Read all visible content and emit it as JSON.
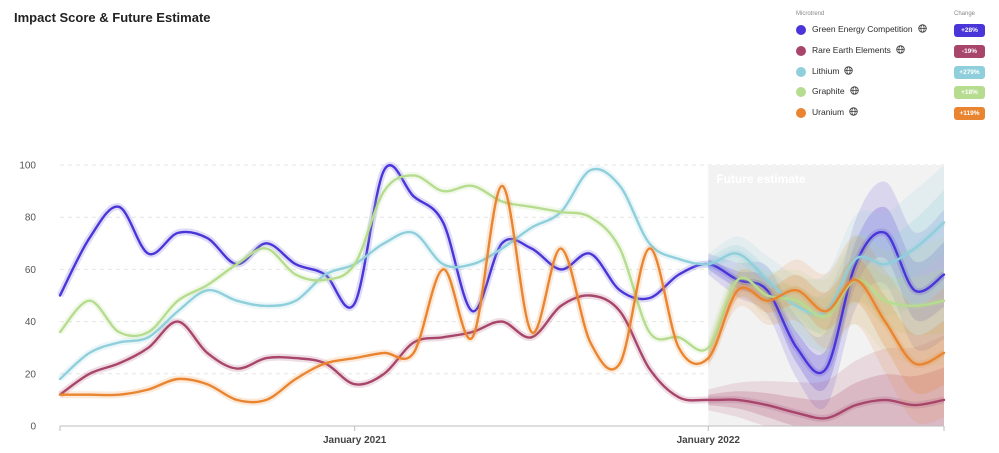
{
  "title": "Impact Score & Future Estimate",
  "legend": {
    "header_name": "Microtrend",
    "header_change": "Change",
    "items": [
      {
        "name": "Green Energy Competition",
        "color": "#4a35d8",
        "change": "+28%",
        "badge_color": "#4a35d8"
      },
      {
        "name": "Rare Earth Elements",
        "color": "#a8456a",
        "change": "-19%",
        "badge_color": "#a8456a"
      },
      {
        "name": "Lithium",
        "color": "#8fcfdc",
        "change": "+279%",
        "badge_color": "#8fcfdc"
      },
      {
        "name": "Graphite",
        "color": "#b6dc8f",
        "change": "+18%",
        "badge_color": "#b6dc8f"
      },
      {
        "name": "Uranium",
        "color": "#e98530",
        "change": "+119%",
        "badge_color": "#e98530"
      }
    ]
  },
  "chart_data": {
    "type": "line",
    "title": "Impact Score & Future Estimate",
    "xlabel": "",
    "ylabel": "",
    "x_range": [
      "2020-03",
      "2022-09"
    ],
    "x_ticks": [
      "January 2021",
      "January 2022"
    ],
    "ylim": [
      0,
      100
    ],
    "y_ticks": [
      0,
      20,
      40,
      60,
      80,
      100
    ],
    "grid": "horizontal dashed",
    "future_start": "2022-01",
    "future_label": "Future estimate",
    "x": [
      "2020-03",
      "2020-04",
      "2020-05",
      "2020-06",
      "2020-07",
      "2020-08",
      "2020-09",
      "2020-10",
      "2020-11",
      "2020-12",
      "2021-01",
      "2021-02",
      "2021-03",
      "2021-04",
      "2021-05",
      "2021-06",
      "2021-07",
      "2021-08",
      "2021-09",
      "2021-10",
      "2021-11",
      "2021-12",
      "2022-01",
      "2022-02",
      "2022-03",
      "2022-04",
      "2022-05",
      "2022-06",
      "2022-07",
      "2022-08",
      "2022-09"
    ],
    "series": [
      {
        "name": "Green Energy Competition",
        "color": "#4a35d8",
        "values": [
          50,
          72,
          84,
          66,
          74,
          72,
          62,
          70,
          62,
          58,
          47,
          98,
          88,
          78,
          44,
          70,
          68,
          60,
          66,
          52,
          49,
          58,
          62,
          56,
          52,
          30,
          22,
          62,
          74,
          52,
          58
        ]
      },
      {
        "name": "Rare Earth Elements",
        "color": "#a8456a",
        "values": [
          12,
          20,
          24,
          30,
          40,
          28,
          22,
          26,
          26,
          24,
          16,
          20,
          32,
          34,
          36,
          40,
          34,
          46,
          50,
          44,
          22,
          11,
          10,
          10,
          8,
          5,
          3,
          8,
          10,
          8,
          10
        ]
      },
      {
        "name": "Lithium",
        "color": "#8fcfdc",
        "values": [
          18,
          28,
          32,
          34,
          44,
          52,
          48,
          46,
          48,
          58,
          62,
          70,
          74,
          62,
          62,
          68,
          76,
          82,
          98,
          92,
          70,
          64,
          62,
          66,
          56,
          46,
          44,
          64,
          62,
          68,
          78
        ]
      },
      {
        "name": "Graphite",
        "color": "#b6dc8f",
        "values": [
          36,
          48,
          36,
          36,
          48,
          54,
          62,
          68,
          58,
          56,
          62,
          90,
          96,
          90,
          92,
          86,
          84,
          82,
          80,
          68,
          36,
          34,
          30,
          56,
          50,
          48,
          42,
          56,
          48,
          46,
          48
        ]
      },
      {
        "name": "Uranium",
        "color": "#e98530",
        "values": [
          12,
          12,
          12,
          14,
          18,
          16,
          10,
          10,
          18,
          24,
          26,
          28,
          28,
          60,
          34,
          92,
          36,
          68,
          32,
          24,
          68,
          30,
          26,
          52,
          48,
          52,
          44,
          56,
          40,
          24,
          28
        ]
      }
    ]
  }
}
